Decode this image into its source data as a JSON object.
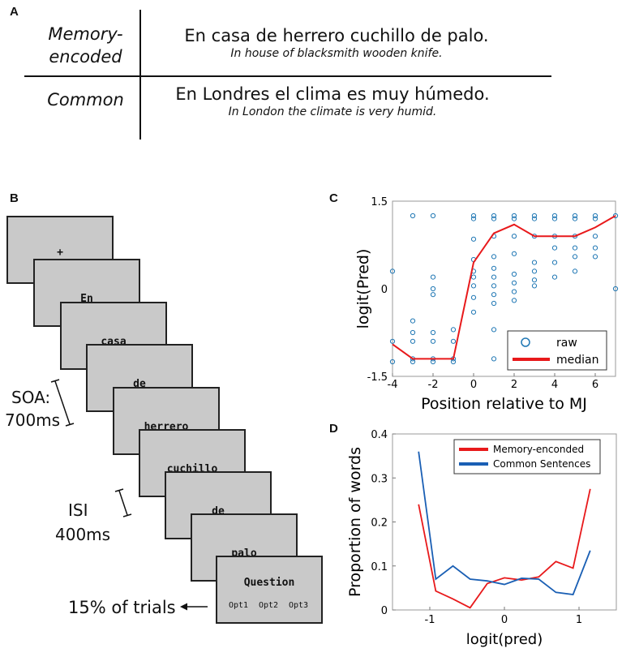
{
  "panel_a": {
    "letter": "A",
    "rows": [
      {
        "label": "Memory-\nencoded",
        "label_line1": "Memory-",
        "label_line2": "encoded",
        "sentence": "En casa de herrero cuchillo de palo.",
        "translation": "In house of blacksmith wooden knife."
      },
      {
        "label": "Common",
        "sentence": "En Londres el clima es muy húmedo.",
        "translation": "In London the climate is very humid."
      }
    ]
  },
  "panel_b": {
    "letter": "B",
    "screens": [
      "+",
      "En",
      "casa",
      "de",
      "herrero",
      "cuchillo",
      "de",
      "palo"
    ],
    "question": {
      "title": "Question",
      "options": [
        "Opt1",
        "Opt2",
        "Opt3"
      ]
    },
    "soa_label_1": "SOA:",
    "soa_label_2": "700ms",
    "isi_label_1": "ISI",
    "isi_label_2": "400ms",
    "trials_label": "15% of trials"
  },
  "chart_data": [
    {
      "panel": "C",
      "type": "scatter",
      "xlabel": "Position relative to MJ",
      "ylabel": "logit(Pred)",
      "xlim": [
        -4,
        7
      ],
      "ylim": [
        -1.5,
        1.5
      ],
      "xticks": [
        -4,
        -2,
        0,
        2,
        4,
        6
      ],
      "ytick_labels": [
        "1.5",
        "0",
        "-1.5"
      ],
      "yticks": [
        1.5,
        0,
        -1.5
      ],
      "legend": [
        "raw",
        "median"
      ],
      "colors": {
        "raw": "#1f77b4",
        "median": "#e8191b"
      },
      "series": [
        {
          "name": "raw",
          "points": [
            [
              -4,
              0.3
            ],
            [
              -4,
              -0.9
            ],
            [
              -4,
              -1.25
            ],
            [
              -3,
              1.25
            ],
            [
              -3,
              -0.55
            ],
            [
              -3,
              -0.75
            ],
            [
              -3,
              -0.9
            ],
            [
              -3,
              -1.2
            ],
            [
              -3,
              -1.25
            ],
            [
              -2,
              1.25
            ],
            [
              -2,
              0.2
            ],
            [
              -2,
              0.0
            ],
            [
              -2,
              -0.1
            ],
            [
              -2,
              -0.75
            ],
            [
              -2,
              -0.9
            ],
            [
              -2,
              -1.2
            ],
            [
              -2,
              -1.25
            ],
            [
              -1,
              -0.7
            ],
            [
              -1,
              -0.9
            ],
            [
              -1,
              -1.2
            ],
            [
              -1,
              -1.25
            ],
            [
              0,
              1.25
            ],
            [
              0,
              1.2
            ],
            [
              0,
              0.85
            ],
            [
              0,
              0.5
            ],
            [
              0,
              0.3
            ],
            [
              0,
              0.2
            ],
            [
              0,
              0.05
            ],
            [
              0,
              -0.15
            ],
            [
              0,
              -0.4
            ],
            [
              1,
              1.25
            ],
            [
              1,
              1.2
            ],
            [
              1,
              0.9
            ],
            [
              1,
              0.55
            ],
            [
              1,
              0.35
            ],
            [
              1,
              0.2
            ],
            [
              1,
              0.05
            ],
            [
              1,
              -0.1
            ],
            [
              1,
              -0.25
            ],
            [
              1,
              -0.7
            ],
            [
              1,
              -1.2
            ],
            [
              2,
              1.25
            ],
            [
              2,
              1.2
            ],
            [
              2,
              0.9
            ],
            [
              2,
              0.6
            ],
            [
              2,
              0.25
            ],
            [
              2,
              0.1
            ],
            [
              2,
              -0.05
            ],
            [
              2,
              -0.2
            ],
            [
              2,
              -0.95
            ],
            [
              3,
              1.25
            ],
            [
              3,
              1.2
            ],
            [
              3,
              0.9
            ],
            [
              3,
              0.45
            ],
            [
              3,
              0.3
            ],
            [
              3,
              0.15
            ],
            [
              3,
              0.05
            ],
            [
              4,
              1.25
            ],
            [
              4,
              1.2
            ],
            [
              4,
              0.9
            ],
            [
              4,
              0.7
            ],
            [
              4,
              0.45
            ],
            [
              4,
              0.2
            ],
            [
              5,
              1.25
            ],
            [
              5,
              1.2
            ],
            [
              5,
              0.9
            ],
            [
              5,
              0.7
            ],
            [
              5,
              0.55
            ],
            [
              5,
              0.3
            ],
            [
              6,
              1.25
            ],
            [
              6,
              1.2
            ],
            [
              6,
              0.9
            ],
            [
              6,
              0.7
            ],
            [
              6,
              0.55
            ],
            [
              7,
              1.25
            ],
            [
              7,
              0.0
            ]
          ]
        },
        {
          "name": "median",
          "x": [
            -4,
            -3,
            -2,
            -1,
            0,
            1,
            2,
            3,
            4,
            5,
            6,
            7
          ],
          "y": [
            -0.95,
            -1.2,
            -1.2,
            -1.2,
            0.45,
            0.95,
            1.1,
            0.9,
            0.9,
            0.9,
            1.05,
            1.25
          ]
        }
      ]
    },
    {
      "panel": "D",
      "type": "line",
      "xlabel": "logit(pred)",
      "ylabel": "Proportion of words",
      "xlim": [
        -1.5,
        1.5
      ],
      "ylim": [
        0,
        0.4
      ],
      "xticks": [
        -1,
        0,
        1
      ],
      "yticks": [
        0,
        0.1,
        0.2,
        0.3,
        0.4
      ],
      "legend_position": "top-right",
      "series": [
        {
          "name": "Memory-enconded",
          "color": "#e8191b",
          "x": [
            -1.15,
            -0.92,
            -0.69,
            -0.46,
            -0.23,
            0.0,
            0.23,
            0.46,
            0.69,
            0.92,
            1.15
          ],
          "y": [
            0.24,
            0.043,
            0.025,
            0.005,
            0.06,
            0.073,
            0.068,
            0.075,
            0.11,
            0.095,
            0.275
          ]
        },
        {
          "name": "Common Sentences",
          "color": "#1a5fb4",
          "x": [
            -1.15,
            -0.92,
            -0.69,
            -0.46,
            -0.23,
            0.0,
            0.23,
            0.46,
            0.69,
            0.92,
            1.15
          ],
          "y": [
            0.36,
            0.07,
            0.1,
            0.07,
            0.066,
            0.058,
            0.072,
            0.07,
            0.04,
            0.035,
            0.135
          ]
        }
      ]
    }
  ],
  "labels": {
    "panel_c": "C",
    "panel_d": "D"
  }
}
